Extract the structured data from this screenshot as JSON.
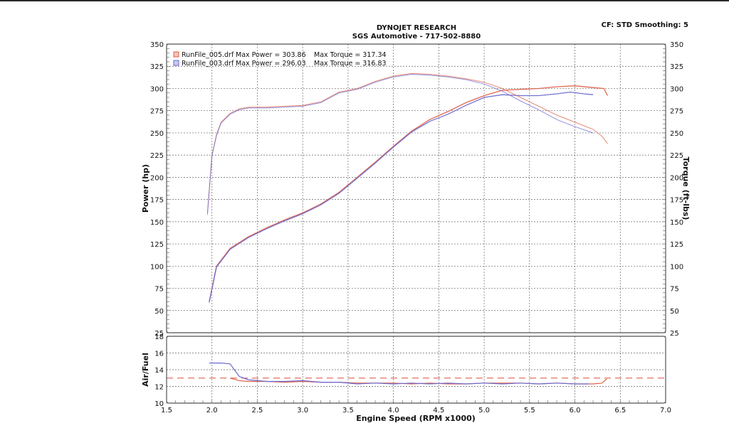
{
  "header": {
    "title": "DYNOJET RESEARCH",
    "subtitle": "SGS Automotive - 717-502-8880",
    "cf_label": "CF: STD  Smoothing: 5"
  },
  "colors": {
    "run005": "#e0604a",
    "run003": "#6a6ad0",
    "grid": "#666666",
    "afr_target": "#e07060"
  },
  "chart_data": [
    {
      "type": "line",
      "id": "power-torque",
      "xlabel": "Engine Speed (RPM x1000)",
      "ylabel": "Power (hp)",
      "y2label": "Torque (ft-lbs)",
      "xlim": [
        1.5,
        7.0
      ],
      "ylim": [
        25,
        350
      ],
      "y2lim": [
        25,
        350
      ],
      "xticks": [
        "1.5",
        "2.0",
        "2.5",
        "3.0",
        "3.5",
        "4.0",
        "4.5",
        "5.0",
        "5.5",
        "6.0",
        "6.5",
        "7.0"
      ],
      "yticks": [
        "25",
        "50",
        "75",
        "100",
        "125",
        "150",
        "175",
        "200",
        "225",
        "250",
        "275",
        "300",
        "325",
        "350"
      ],
      "grid": true,
      "legend": [
        {
          "file": "RunFile_005.drf",
          "power_text": "Max Power = 303.86",
          "torque_text": "Max Torque = 317.34"
        },
        {
          "file": "RunFile_003.drf",
          "power_text": "Max Power = 296.03",
          "torque_text": "Max Torque = 316.83"
        }
      ],
      "series": [
        {
          "name": "RunFile_005.drf",
          "quantity": "power",
          "x": [
            1.97,
            2.05,
            2.2,
            2.4,
            2.6,
            2.8,
            3.0,
            3.2,
            3.4,
            3.6,
            3.8,
            4.0,
            4.2,
            4.4,
            4.6,
            4.8,
            5.0,
            5.2,
            5.4,
            5.6,
            5.8,
            6.0,
            6.2,
            6.32,
            6.36
          ],
          "y": [
            60,
            100,
            120,
            133,
            143,
            152,
            160,
            170,
            183,
            200,
            217,
            235,
            252,
            265,
            274,
            284,
            292,
            298,
            299,
            300,
            302,
            303,
            301,
            300,
            292
          ]
        },
        {
          "name": "RunFile_003.drf",
          "quantity": "power",
          "x": [
            1.97,
            2.05,
            2.2,
            2.4,
            2.6,
            2.8,
            3.0,
            3.2,
            3.4,
            3.6,
            3.8,
            4.0,
            4.2,
            4.4,
            4.6,
            4.8,
            5.0,
            5.2,
            5.4,
            5.6,
            5.8,
            5.95,
            6.1,
            6.2
          ],
          "y": [
            59,
            99,
            119,
            132,
            142,
            151,
            159,
            169,
            182,
            199,
            216,
            234,
            251,
            263,
            271,
            281,
            290,
            293,
            292,
            292,
            294,
            296,
            294,
            293
          ]
        },
        {
          "name": "RunFile_005.drf",
          "quantity": "torque",
          "x": [
            1.95,
            2.0,
            2.05,
            2.1,
            2.2,
            2.3,
            2.4,
            2.6,
            2.8,
            3.0,
            3.2,
            3.4,
            3.6,
            3.8,
            4.0,
            4.2,
            4.4,
            4.6,
            4.8,
            5.0,
            5.2,
            5.4,
            5.6,
            5.8,
            6.0,
            6.2,
            6.3,
            6.36
          ],
          "y": [
            160,
            225,
            248,
            262,
            272,
            277,
            279,
            279,
            280,
            281,
            285,
            296,
            300,
            308,
            314,
            317,
            316,
            314,
            311,
            307,
            300,
            290,
            280,
            270,
            262,
            254,
            246,
            238
          ]
        },
        {
          "name": "RunFile_003.drf",
          "quantity": "torque",
          "x": [
            1.95,
            2.0,
            2.05,
            2.1,
            2.2,
            2.3,
            2.4,
            2.6,
            2.8,
            3.0,
            3.2,
            3.4,
            3.6,
            3.8,
            4.0,
            4.2,
            4.4,
            4.6,
            4.8,
            5.0,
            5.2,
            5.4,
            5.6,
            5.8,
            6.0,
            6.2
          ],
          "y": [
            158,
            224,
            247,
            261,
            271,
            276,
            278,
            278,
            279,
            280,
            284,
            295,
            299,
            307,
            313,
            316,
            315,
            313,
            310,
            305,
            297,
            286,
            276,
            265,
            257,
            250
          ]
        }
      ]
    },
    {
      "type": "line",
      "id": "air-fuel",
      "xlabel": "Engine Speed (RPM x1000)",
      "ylabel": "Air/Fuel",
      "xlim": [
        1.5,
        7.0
      ],
      "ylim": [
        10,
        18
      ],
      "xticks": [
        "1.5",
        "2.0",
        "2.5",
        "3.0",
        "3.5",
        "4.0",
        "4.5",
        "5.0",
        "5.5",
        "6.0",
        "6.5",
        "7.0"
      ],
      "yticks": [
        "10",
        "12",
        "14",
        "16",
        "18"
      ],
      "grid": true,
      "target_afr": 13.0,
      "series": [
        {
          "name": "RunFile_005.drf",
          "x": [
            2.2,
            2.3,
            2.4,
            2.6,
            2.8,
            3.0,
            3.2,
            3.4,
            3.6,
            3.8,
            4.0,
            4.2,
            4.4,
            4.6,
            4.8,
            5.0,
            5.2,
            5.4,
            5.6,
            5.8,
            6.0,
            6.2,
            6.3,
            6.35
          ],
          "y": [
            13.0,
            12.7,
            12.6,
            12.6,
            12.5,
            12.6,
            12.5,
            12.5,
            12.4,
            12.4,
            12.4,
            12.3,
            12.4,
            12.3,
            12.3,
            12.4,
            12.4,
            12.4,
            12.3,
            12.4,
            12.3,
            12.3,
            12.4,
            12.9
          ]
        },
        {
          "name": "RunFile_003.drf",
          "x": [
            1.97,
            2.1,
            2.2,
            2.3,
            2.4,
            2.6,
            2.8,
            3.0,
            3.2,
            3.4,
            3.6,
            3.8,
            4.0,
            4.2,
            4.4,
            4.6,
            4.8,
            5.0,
            5.2,
            5.4,
            5.6,
            5.8,
            6.0,
            6.15
          ],
          "y": [
            14.8,
            14.8,
            14.7,
            13.2,
            12.8,
            12.6,
            12.6,
            12.7,
            12.5,
            12.5,
            12.3,
            12.4,
            12.3,
            12.4,
            12.3,
            12.4,
            12.3,
            12.4,
            12.3,
            12.4,
            12.3,
            12.4,
            12.3,
            12.3
          ]
        }
      ]
    }
  ]
}
